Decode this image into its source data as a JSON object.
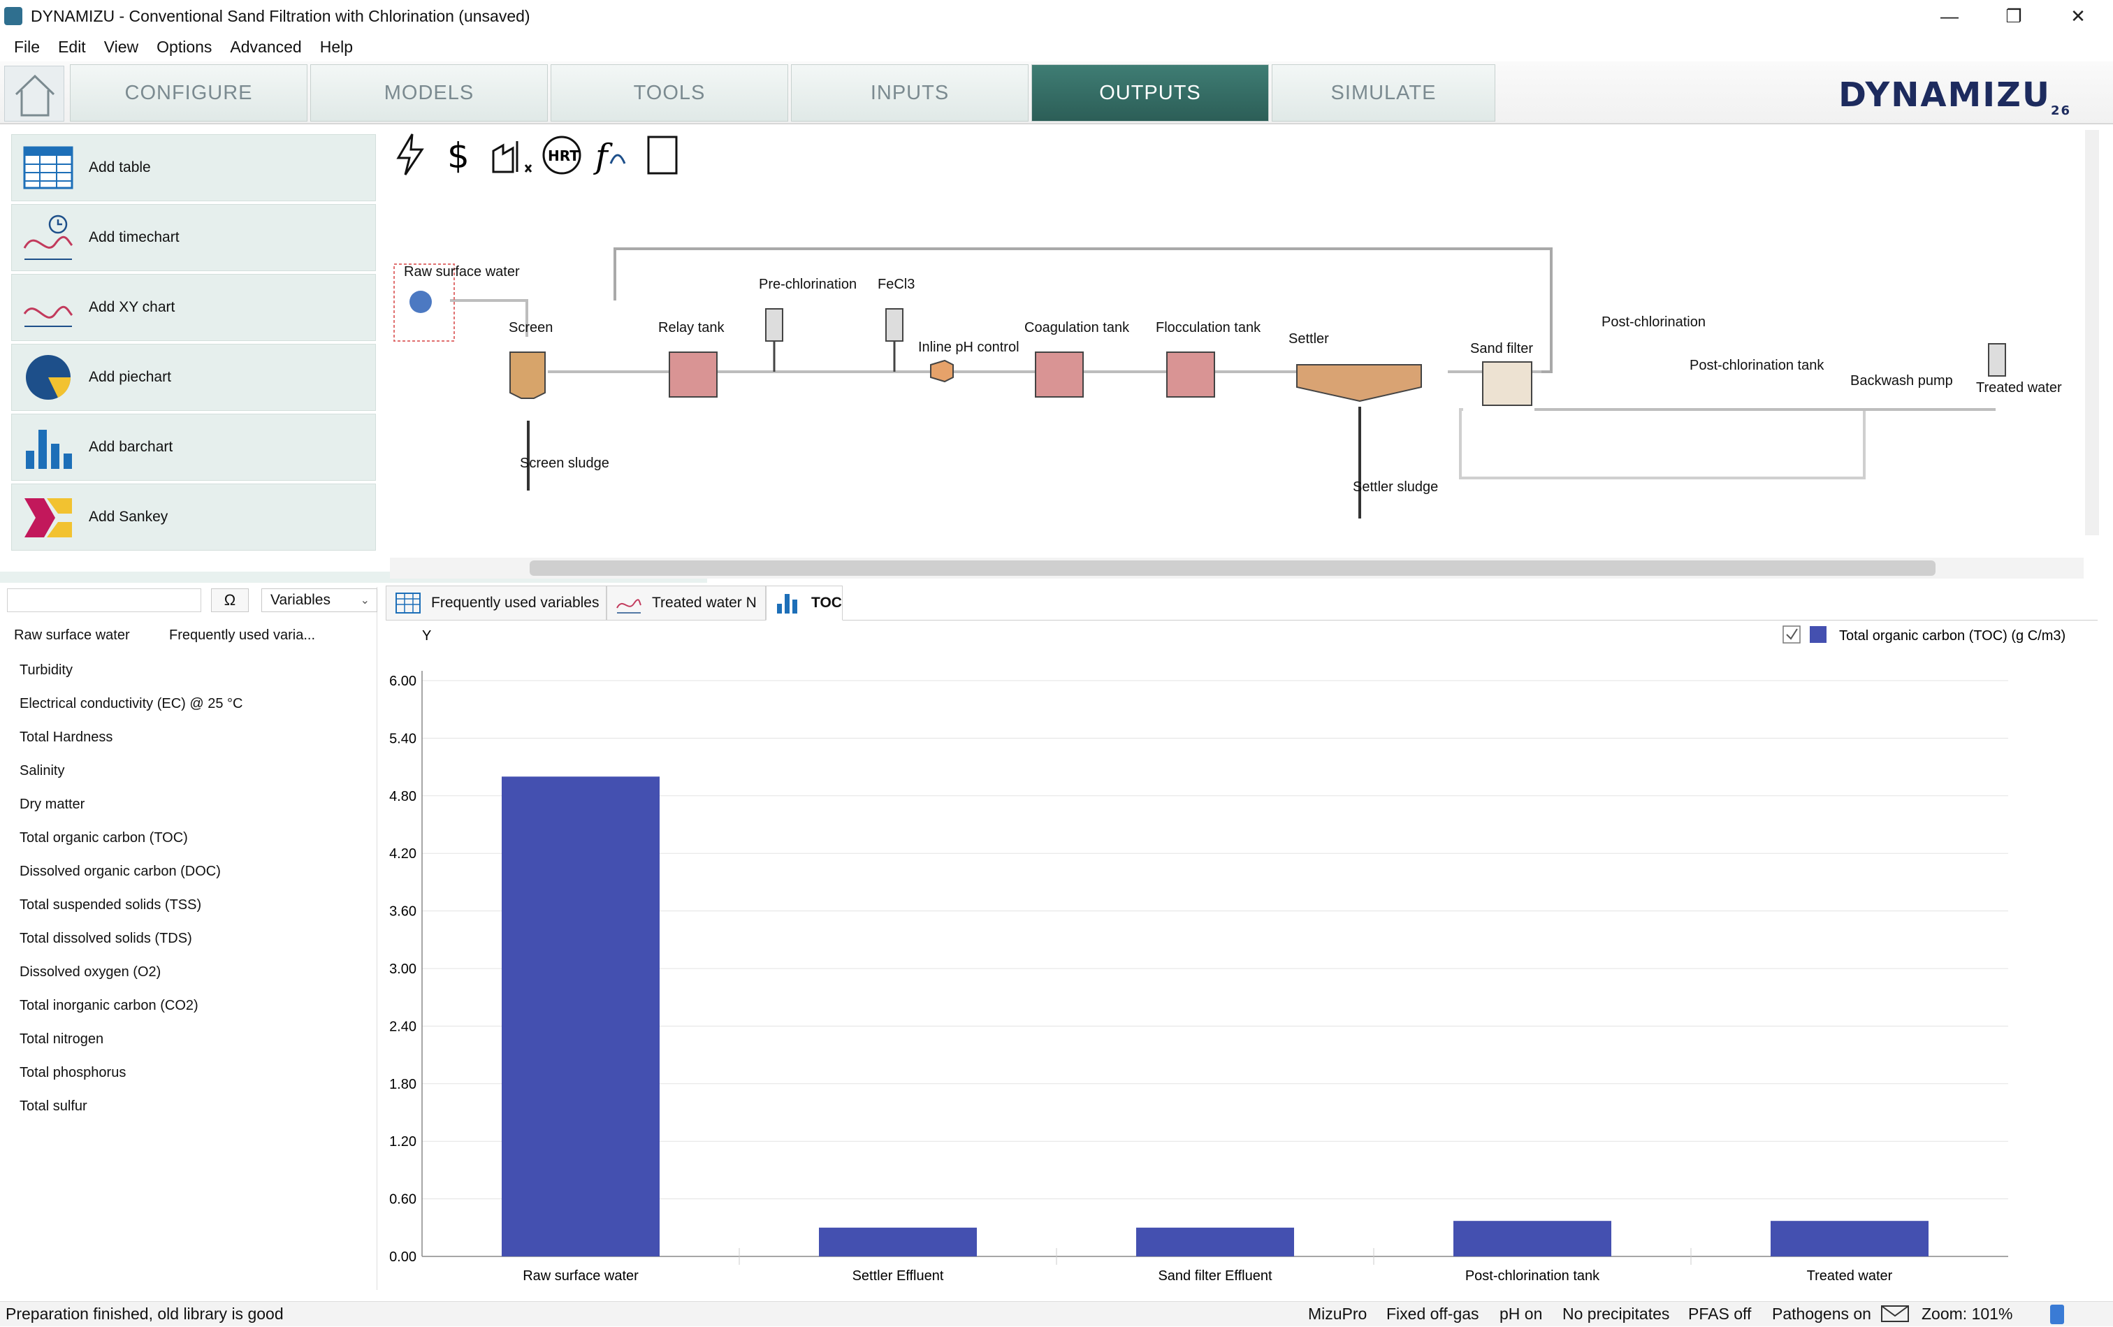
{
  "window": {
    "title": "DYNAMIZU - Conventional Sand Filtration with Chlorination (unsaved)",
    "min_label": "—",
    "restore_label": "❐",
    "close_label": "✕"
  },
  "menu": [
    "File",
    "Edit",
    "View",
    "Options",
    "Advanced",
    "Help"
  ],
  "nav": {
    "tabs": [
      "CONFIGURE",
      "MODELS",
      "TOOLS",
      "INPUTS",
      "OUTPUTS",
      "SIMULATE"
    ],
    "active": "OUTPUTS",
    "logo": "DYNAMIZU",
    "logo_sub": "26"
  },
  "add_buttons": [
    "Add table",
    "Add timechart",
    "Add XY chart",
    "Add piechart",
    "Add barchart",
    "Add Sankey"
  ],
  "variables": {
    "selector": "Variables",
    "omega_label": "Ω",
    "header_unit": "Raw surface water",
    "header_set": "Frequently used varia...",
    "items": [
      "Turbidity",
      "Electrical conductivity (EC) @ 25 °C",
      "Total Hardness",
      "Salinity",
      "Dry matter",
      "Total organic carbon (TOC)",
      "Dissolved organic carbon (DOC)",
      "Total suspended solids (TSS)",
      "Total dissolved solids (TDS)",
      "Dissolved oxygen (O2)",
      "Total inorganic carbon (CO2)",
      "Total nitrogen",
      "Total phosphorus",
      "Total sulfur"
    ]
  },
  "diagram": {
    "toolbar_icons": [
      "lightning-icon",
      "dollar-icon",
      "factory-icon",
      "hrt-icon",
      "function-icon",
      "scroll-icon"
    ],
    "hrt_label": "HRT",
    "units": {
      "raw": "Raw surface water",
      "screen": "Screen",
      "screen_sludge": "Screen sludge",
      "relay": "Relay tank",
      "prechlor": "Pre-chlorination",
      "fecl3": "FeCl3",
      "inline_ph": "Inline pH control",
      "coag": "Coagulation tank",
      "floc": "Flocculation tank",
      "settler": "Settler",
      "settler_sludge": "Settler sludge",
      "sand": "Sand filter",
      "postchlor": "Post-chlorination",
      "postchlor_tank": "Post-chlorination tank",
      "backwash": "Backwash pump",
      "treated": "Treated water"
    }
  },
  "output_tabs": [
    "Frequently used variables",
    "Treated water N",
    "TOC"
  ],
  "active_output_tab": "TOC",
  "chart_data": {
    "type": "bar",
    "categories": [
      "Raw surface water",
      "Settler Effluent",
      "Sand filter Effluent",
      "Post-chlorination tank",
      "Treated water"
    ],
    "series": [
      {
        "name": "Total organic carbon (TOC) (g C/m3)",
        "values": [
          5.0,
          0.3,
          0.3,
          0.37,
          0.37
        ],
        "color": "#4450b0"
      }
    ],
    "ylabel": "Y",
    "ylim": [
      0,
      6.0
    ],
    "yticks": [
      "0.00",
      "0.60",
      "1.20",
      "1.80",
      "2.40",
      "3.00",
      "3.60",
      "4.20",
      "4.80",
      "5.40",
      "6.00"
    ],
    "grid": true,
    "legend_position": "top-right"
  },
  "status": {
    "message": "Preparation finished, old library is good",
    "items": [
      "MizuPro",
      "Fixed off-gas",
      "pH on",
      "No precipitates",
      "PFAS off",
      "Pathogens on"
    ],
    "zoom": "Zoom: 101%"
  }
}
